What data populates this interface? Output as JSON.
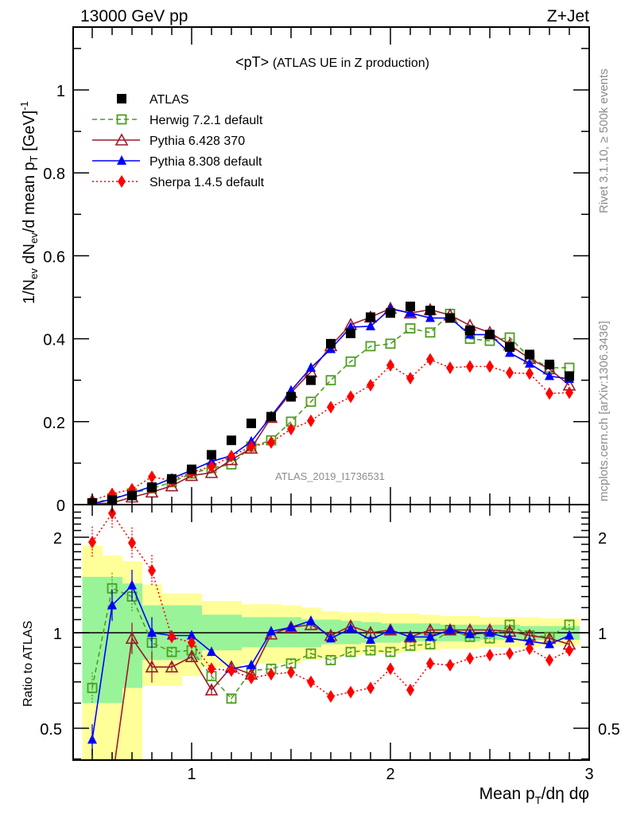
{
  "header": {
    "left_label": "13000 GeV pp",
    "right_label": "Z+Jet"
  },
  "side_labels": {
    "rivet": "Rivet 3.1.10, ≥ 500k events",
    "mcplots": "mcplots.cern.ch [arXiv:1306.3436]"
  },
  "chart_data": [
    {
      "type": "scatter",
      "panel": "main",
      "title": "<pT> (ATLAS UE in Z production)",
      "title_prefix": "<pT>",
      "title_suffix": "(ATLAS UE in Z production)",
      "watermark": "ATLAS_2019_I1736531",
      "ylabel": "1/N_ev dN_ev/d mean p_T [GeV]^-1",
      "ylabel_parts": {
        "a": "1/N",
        "a_sub": "ev",
        "b": " dN",
        "b_sub": "ev",
        "c": "/d mean p",
        "c_sub": "T",
        "d": " [GeV]",
        "d_sup": "-1"
      },
      "xlabel": "",
      "xlim": [
        0.4,
        3.0
      ],
      "ylim": [
        0,
        1.15
      ],
      "yticks": [
        0,
        0.2,
        0.4,
        0.6,
        0.8,
        1
      ],
      "ytick_labels": [
        "0",
        "0.2",
        "0.4",
        "0.6",
        "0.8",
        "1"
      ],
      "legend_position": "top-left",
      "x": [
        0.5,
        0.6,
        0.7,
        0.8,
        0.9,
        1.0,
        1.1,
        1.2,
        1.3,
        1.4,
        1.5,
        1.6,
        1.7,
        1.8,
        1.9,
        2.0,
        2.1,
        2.2,
        2.3,
        2.4,
        2.5,
        2.6,
        2.7,
        2.8,
        2.9
      ],
      "series": [
        {
          "name": "ATLAS",
          "color": "#000000",
          "marker": "filled-square",
          "line": "none",
          "values": [
            0.004,
            0.011,
            0.022,
            0.042,
            0.062,
            0.085,
            0.12,
            0.155,
            0.196,
            0.212,
            0.26,
            0.3,
            0.388,
            0.413,
            0.452,
            0.462,
            0.478,
            0.468,
            0.45,
            0.42,
            0.41,
            0.38,
            0.362,
            0.338,
            0.31
          ]
        },
        {
          "name": "Herwig 7.2.1 default",
          "color": "#4d9e1f",
          "marker": "open-square",
          "line": "dashed",
          "values": [
            0.003,
            0.015,
            0.027,
            0.039,
            0.054,
            0.075,
            0.088,
            0.097,
            0.14,
            0.155,
            0.2,
            0.248,
            0.3,
            0.345,
            0.382,
            0.388,
            0.425,
            0.415,
            0.46,
            0.4,
            0.395,
            0.403,
            0.355,
            0.33,
            0.33
          ]
        },
        {
          "name": "Pythia 6.428 370",
          "color": "#9b1a2a",
          "marker": "open-triangle",
          "line": "solid",
          "values": [
            0.002,
            0.004,
            0.018,
            0.03,
            0.045,
            0.07,
            0.077,
            0.108,
            0.136,
            0.21,
            0.27,
            0.32,
            0.383,
            0.434,
            0.452,
            0.473,
            0.462,
            0.47,
            0.457,
            0.432,
            0.415,
            0.385,
            0.352,
            0.327,
            0.288
          ]
        },
        {
          "name": "Pythia 8.308 default",
          "color": "#0000ff",
          "marker": "filled-triangle",
          "line": "solid",
          "values": [
            0.0019,
            0.013,
            0.028,
            0.044,
            0.063,
            0.083,
            0.104,
            0.118,
            0.152,
            0.213,
            0.275,
            0.33,
            0.375,
            0.428,
            0.43,
            0.472,
            0.462,
            0.45,
            0.45,
            0.41,
            0.41,
            0.366,
            0.34,
            0.31,
            0.303
          ]
        },
        {
          "name": "Sherpa 1.4.5 default",
          "color": "#ff0000",
          "marker": "filled-diamond",
          "line": "dotted",
          "values": [
            0.01,
            0.026,
            0.037,
            0.067,
            0.058,
            0.078,
            0.092,
            0.117,
            0.14,
            0.15,
            0.182,
            0.202,
            0.235,
            0.26,
            0.288,
            0.336,
            0.305,
            0.35,
            0.33,
            0.333,
            0.333,
            0.318,
            0.316,
            0.268,
            0.27
          ]
        }
      ]
    },
    {
      "type": "scatter",
      "panel": "ratio",
      "ylabel": "Ratio to ATLAS",
      "xlabel": "Mean p_T/dη dφ",
      "xlabel_parts": {
        "a": "Mean p",
        "a_sub": "T",
        "b": "/dη dφ"
      },
      "xlim": [
        0.4,
        3.0
      ],
      "ylim": [
        0.4,
        2.4
      ],
      "yscale": "log",
      "xticks": [
        1,
        2,
        3
      ],
      "xtick_labels": [
        "1",
        "2",
        "3"
      ],
      "yticks": [
        0.5,
        1,
        2
      ],
      "ytick_labels": [
        "0.5",
        "1",
        "2"
      ],
      "reference_line": 1,
      "x": [
        0.5,
        0.6,
        0.7,
        0.8,
        0.9,
        1.0,
        1.1,
        1.2,
        1.3,
        1.4,
        1.5,
        1.6,
        1.7,
        1.8,
        1.9,
        2.0,
        2.1,
        2.2,
        2.3,
        2.4,
        2.5,
        2.6,
        2.7,
        2.8,
        2.9
      ],
      "bands": {
        "green_1sigma": {
          "color": "#99f399",
          "low": [
            0.6,
            0.6,
            0.67,
            0.82,
            0.82,
            0.82,
            0.88,
            0.88,
            0.9,
            0.9,
            0.9,
            0.9,
            0.92,
            0.92,
            0.93,
            0.93,
            0.94,
            0.94,
            0.94,
            0.94,
            0.95,
            0.95,
            0.95,
            0.95,
            0.95
          ],
          "high": [
            1.5,
            1.5,
            1.43,
            1.22,
            1.22,
            1.22,
            1.14,
            1.14,
            1.12,
            1.12,
            1.12,
            1.1,
            1.1,
            1.09,
            1.08,
            1.07,
            1.07,
            1.07,
            1.06,
            1.06,
            1.06,
            1.06,
            1.05,
            1.05,
            1.05
          ]
        },
        "yellow_2sigma": {
          "color": "#ffff99",
          "low": [
            0.39,
            0.39,
            0.39,
            0.68,
            0.68,
            0.73,
            0.78,
            0.78,
            0.8,
            0.8,
            0.8,
            0.82,
            0.83,
            0.85,
            0.86,
            0.86,
            0.87,
            0.88,
            0.89,
            0.89,
            0.9,
            0.9,
            0.9,
            0.91,
            0.91
          ],
          "high": [
            1.88,
            1.75,
            1.68,
            1.42,
            1.33,
            1.33,
            1.26,
            1.26,
            1.23,
            1.23,
            1.22,
            1.2,
            1.17,
            1.16,
            1.16,
            1.15,
            1.15,
            1.14,
            1.13,
            1.13,
            1.12,
            1.12,
            1.12,
            1.11,
            1.11
          ]
        }
      },
      "series": [
        {
          "name": "Herwig 7.2.1 default",
          "color": "#4d9e1f",
          "marker": "open-square",
          "line": "dashed",
          "values": [
            0.67,
            1.38,
            1.3,
            0.93,
            0.87,
            0.88,
            0.73,
            0.62,
            0.76,
            0.77,
            0.8,
            0.86,
            0.82,
            0.87,
            0.88,
            0.87,
            0.91,
            0.92,
            1.02,
            0.97,
            0.96,
            1.06,
            0.98,
            0.97,
            1.06
          ]
        },
        {
          "name": "Pythia 6.428 370",
          "color": "#9b1a2a",
          "marker": "open-triangle",
          "line": "solid",
          "values": [
            0.31,
            0.34,
            0.96,
            0.78,
            0.78,
            0.84,
            0.66,
            0.78,
            0.74,
            0.99,
            1.04,
            1.06,
            0.98,
            1.05,
            1.0,
            1.02,
            0.97,
            1.02,
            1.02,
            1.02,
            1.02,
            1.01,
            0.98,
            0.96,
            0.92
          ]
        },
        {
          "name": "Pythia 8.308 default",
          "color": "#0000ff",
          "marker": "filled-triangle",
          "line": "solid",
          "values": [
            0.46,
            1.22,
            1.41,
            1.0,
            0.98,
            0.98,
            0.87,
            0.77,
            0.79,
            1.01,
            1.04,
            1.09,
            0.96,
            1.03,
            0.95,
            1.02,
            0.97,
            0.97,
            1.02,
            0.99,
            1.0,
            0.96,
            0.94,
            0.92,
            0.98
          ]
        },
        {
          "name": "Sherpa 1.4.5 default",
          "color": "#ff0000",
          "marker": "filled-diamond",
          "line": "dotted",
          "values": [
            1.93,
            2.38,
            1.92,
            1.57,
            0.97,
            0.93,
            0.77,
            0.76,
            0.72,
            0.74,
            0.75,
            0.7,
            0.63,
            0.65,
            0.67,
            0.77,
            0.66,
            0.8,
            0.79,
            0.83,
            0.85,
            0.86,
            0.89,
            0.82,
            0.88
          ]
        }
      ]
    }
  ]
}
